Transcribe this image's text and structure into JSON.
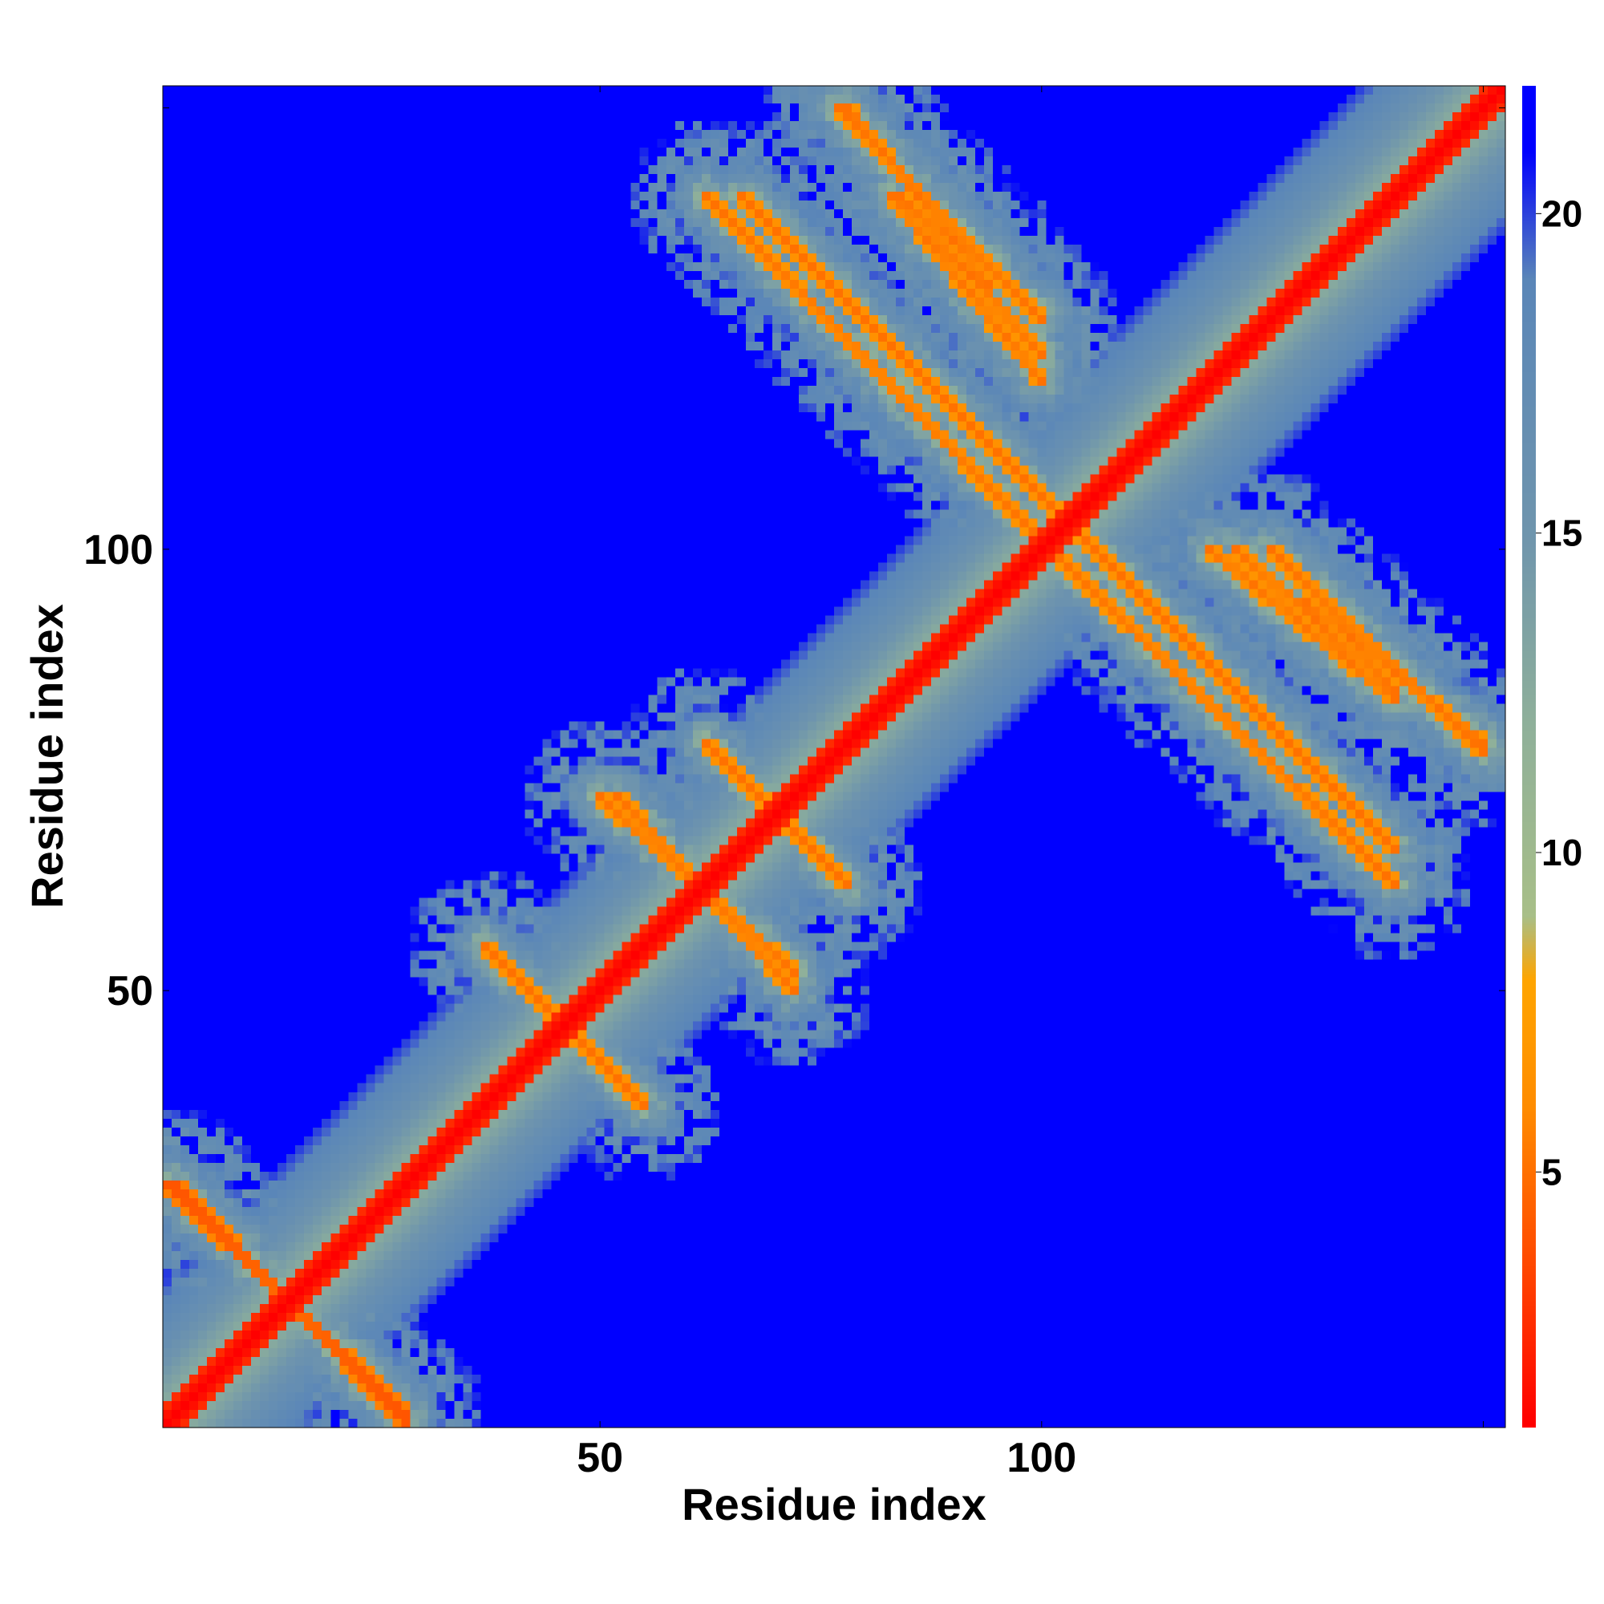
{
  "chart_data": {
    "type": "heatmap",
    "title": "",
    "xlabel": "Residue index",
    "ylabel": "Residue index",
    "n_residues": 152,
    "xlim": [
      1,
      152
    ],
    "ylim": [
      1,
      152
    ],
    "xticks": [
      50,
      100,
      150
    ],
    "xtick_labels": [
      "50",
      "100",
      ""
    ],
    "yticks": [
      50,
      100,
      150
    ],
    "ytick_labels": [
      "50",
      "100",
      ""
    ],
    "colorbar": {
      "range": [
        1,
        22
      ],
      "ticks": [
        5,
        10,
        15,
        20
      ],
      "tick_labels": [
        "5",
        "10",
        "15",
        "20"
      ],
      "colors": [
        "#ff0000",
        "#ff5500",
        "#ff8c00",
        "#ffa500",
        "#a8bf88",
        "#8fb09a",
        "#6f95ad",
        "#5a86b8",
        "#0000ff"
      ],
      "stops": [
        1,
        4,
        6,
        8,
        9,
        12,
        15,
        19,
        21
      ]
    },
    "grid": false,
    "contacts_diagonal": {
      "from": 1,
      "to": 152,
      "value": 1
    },
    "contact_streaks": [
      {
        "start": [
          28,
          2
        ],
        "end": [
          1,
          28
        ],
        "value": 4
      },
      {
        "start": [
          55,
          37
        ],
        "end": [
          37,
          55
        ],
        "value": 5
      },
      {
        "start": [
          72,
          52
        ],
        "end": [
          50,
          72
        ],
        "value": 5
      },
      {
        "start": [
          78,
          62
        ],
        "end": [
          62,
          78
        ],
        "value": 5
      },
      {
        "start": [
          62,
          140
        ],
        "end": [
          102,
          99
        ],
        "value": 5
      },
      {
        "start": [
          77,
          150
        ],
        "end": [
          100,
          126
        ],
        "value": 5
      },
      {
        "start": [
          84,
          140
        ],
        "end": [
          100,
          122
        ],
        "value": 5
      },
      {
        "start": [
          104,
          102
        ],
        "end": [
          140,
          66
        ],
        "value": 5
      },
      {
        "start": [
          119,
          100
        ],
        "end": [
          140,
          83
        ],
        "value": 5
      },
      {
        "start": [
          130,
          94
        ],
        "end": [
          150,
          78
        ],
        "value": 5
      }
    ],
    "near_contact_bands": [
      {
        "center_offset": 0,
        "halfwidth": 8,
        "value": 11
      },
      {
        "center_offset": 0,
        "halfwidth": 16,
        "value": 16
      }
    ],
    "far_value": 21
  }
}
